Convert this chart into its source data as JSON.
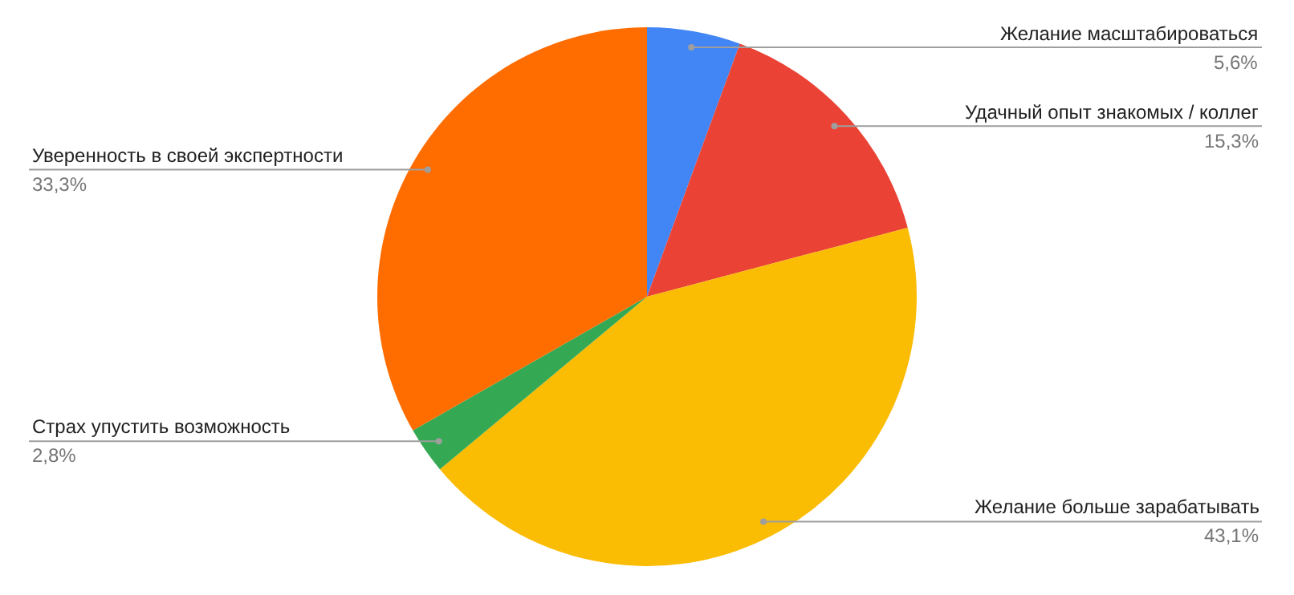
{
  "chart_data": {
    "type": "pie",
    "categories": [
      "Желание масштабироваться",
      "Удачный опыт знакомых / коллег",
      "Желание больше зарабатывать",
      "Страх упустить возможность",
      "Уверенность в своей экспертности"
    ],
    "values": [
      5.6,
      15.3,
      43.1,
      2.8,
      33.3
    ],
    "value_labels": [
      "5,6%",
      "15,3%",
      "43,1%",
      "2,8%",
      "33,3%"
    ],
    "colors": [
      "#4285f4",
      "#ea4335",
      "#fbbc04",
      "#34a853",
      "#ff6d01"
    ],
    "legend": false
  }
}
